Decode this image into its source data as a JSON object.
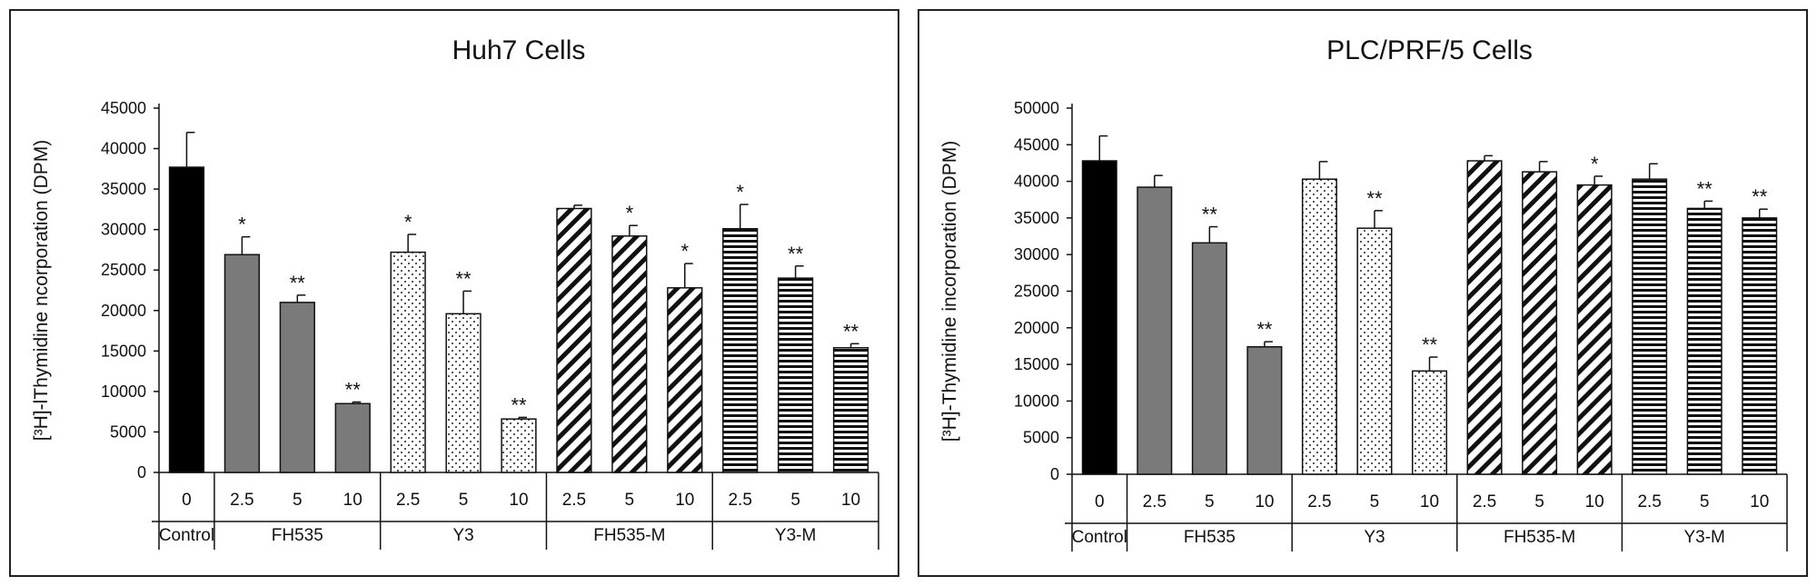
{
  "chart_data": [
    {
      "type": "bar",
      "title": "Huh7 Cells",
      "ylabel": "[³H]-lThymidine ncorporation (DPM)",
      "ylim": [
        0,
        45000
      ],
      "yticks": [
        0,
        5000,
        10000,
        15000,
        20000,
        25000,
        30000,
        35000,
        40000,
        45000
      ],
      "groups": [
        {
          "name": "Control",
          "pattern": "solid-black",
          "bars": [
            {
              "label": "0",
              "value": 37700,
              "error": 4300,
              "sig": ""
            }
          ]
        },
        {
          "name": "FH535",
          "pattern": "solid-gray",
          "bars": [
            {
              "label": "2.5",
              "value": 26900,
              "error": 2200,
              "sig": "*"
            },
            {
              "label": "5",
              "value": 21000,
              "error": 900,
              "sig": "**"
            },
            {
              "label": "10",
              "value": 8500,
              "error": 200,
              "sig": "**"
            }
          ]
        },
        {
          "name": "Y3",
          "pattern": "dots",
          "bars": [
            {
              "label": "2.5",
              "value": 27200,
              "error": 2200,
              "sig": "*"
            },
            {
              "label": "5",
              "value": 19600,
              "error": 2800,
              "sig": "**"
            },
            {
              "label": "10",
              "value": 6600,
              "error": 200,
              "sig": "**"
            }
          ]
        },
        {
          "name": "FH535-M",
          "pattern": "diagonal",
          "bars": [
            {
              "label": "2.5",
              "value": 32600,
              "error": 400,
              "sig": ""
            },
            {
              "label": "5",
              "value": 29200,
              "error": 1300,
              "sig": "*"
            },
            {
              "label": "10",
              "value": 22800,
              "error": 3000,
              "sig": "*"
            }
          ]
        },
        {
          "name": "Y3-M",
          "pattern": "horizontal",
          "bars": [
            {
              "label": "2.5",
              "value": 30100,
              "error": 3000,
              "sig": "*"
            },
            {
              "label": "5",
              "value": 24000,
              "error": 1500,
              "sig": "**"
            },
            {
              "label": "10",
              "value": 15400,
              "error": 500,
              "sig": "**"
            }
          ]
        }
      ]
    },
    {
      "type": "bar",
      "title": "PLC/PRF/5 Cells",
      "ylabel": "[³H]-Thymidine incorporation (DPM)",
      "ylim": [
        0,
        50000
      ],
      "yticks": [
        0,
        5000,
        10000,
        15000,
        20000,
        25000,
        30000,
        35000,
        40000,
        45000,
        50000
      ],
      "groups": [
        {
          "name": "Control",
          "pattern": "solid-black",
          "bars": [
            {
              "label": "0",
              "value": 42800,
              "error": 3400,
              "sig": ""
            }
          ]
        },
        {
          "name": "FH535",
          "pattern": "solid-gray",
          "bars": [
            {
              "label": "2.5",
              "value": 39200,
              "error": 1600,
              "sig": ""
            },
            {
              "label": "5",
              "value": 31600,
              "error": 2200,
              "sig": "**"
            },
            {
              "label": "10",
              "value": 17400,
              "error": 700,
              "sig": "**"
            }
          ]
        },
        {
          "name": "Y3",
          "pattern": "dots",
          "bars": [
            {
              "label": "2.5",
              "value": 40300,
              "error": 2400,
              "sig": ""
            },
            {
              "label": "5",
              "value": 33600,
              "error": 2400,
              "sig": "**"
            },
            {
              "label": "10",
              "value": 14100,
              "error": 1900,
              "sig": "**"
            }
          ]
        },
        {
          "name": "FH535-M",
          "pattern": "diagonal",
          "bars": [
            {
              "label": "2.5",
              "value": 42800,
              "error": 700,
              "sig": ""
            },
            {
              "label": "5",
              "value": 41300,
              "error": 1400,
              "sig": ""
            },
            {
              "label": "10",
              "value": 39500,
              "error": 1200,
              "sig": "*"
            }
          ]
        },
        {
          "name": "Y3-M",
          "pattern": "horizontal",
          "bars": [
            {
              "label": "2.5",
              "value": 40300,
              "error": 2100,
              "sig": ""
            },
            {
              "label": "5",
              "value": 36300,
              "error": 1000,
              "sig": "**"
            },
            {
              "label": "10",
              "value": 35000,
              "error": 1200,
              "sig": "**"
            }
          ]
        }
      ]
    }
  ]
}
